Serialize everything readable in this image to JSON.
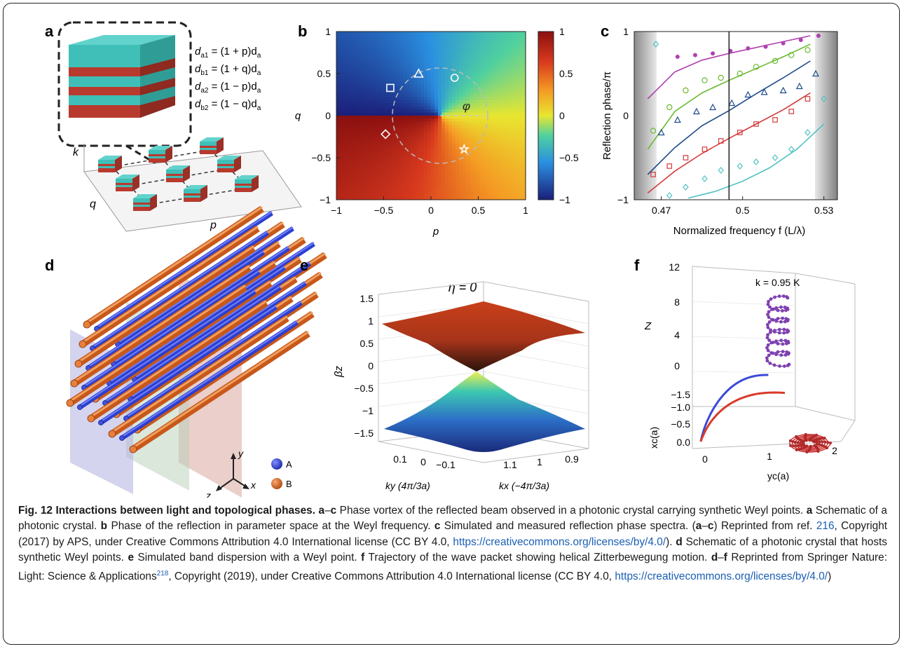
{
  "panel_labels": [
    "a",
    "b",
    "c",
    "d",
    "e",
    "f"
  ],
  "panel_a": {
    "equations": [
      [
        "d",
        "a1",
        " = (1 + p)d",
        "a"
      ],
      [
        "d",
        "b1",
        " = (1 + q)d",
        "a"
      ],
      [
        "d",
        "a2",
        " = (1 − p)d",
        "a"
      ],
      [
        "d",
        "b2",
        " = (1 − q)d",
        "a"
      ]
    ],
    "axis_k": "k",
    "axis_q": "q",
    "axis_p": "p",
    "colors": {
      "teal": "#3fbfb8",
      "red": "#b83a2e"
    }
  },
  "chart_data": [
    {
      "panel": "b",
      "type": "heatmap",
      "xlabel": "p",
      "ylabel": "q",
      "xlim": [
        -1,
        1
      ],
      "ylim": [
        -1,
        1
      ],
      "xticks": [
        "−1",
        "−0.5",
        "0",
        "0.5",
        "1"
      ],
      "yticks": [
        "1",
        "0.5",
        "0",
        "−0.5",
        "−1"
      ],
      "colorbar_ticks": [
        "1",
        "0.5",
        "0",
        "−0.5",
        "−1"
      ],
      "colorbar_range": [
        -1,
        1
      ],
      "annotation": "φ",
      "markers": [
        {
          "shape": "triangle",
          "p": -0.13,
          "q": 0.5
        },
        {
          "shape": "circle",
          "p": 0.25,
          "q": 0.45
        },
        {
          "shape": "square",
          "p": -0.43,
          "q": 0.33
        },
        {
          "shape": "diamond",
          "p": -0.48,
          "q": -0.22
        },
        {
          "shape": "star",
          "p": 0.35,
          "q": -0.4
        }
      ]
    },
    {
      "panel": "c",
      "type": "line",
      "xlabel": "Normalized frequency f (L/λ)",
      "ylabel": "Reflection phase/π",
      "xlim": [
        0.46,
        0.535
      ],
      "ylim": [
        -1,
        1
      ],
      "xticks": [
        "0.47",
        "0.5",
        "0.53"
      ],
      "yticks": [
        "1",
        "0",
        "−1"
      ],
      "vertical_line_x": 0.495,
      "series": [
        {
          "marker": "star",
          "color": "#b040b0",
          "x": [
            0.476,
            0.4825,
            0.489,
            0.4955,
            0.502,
            0.5085,
            0.515,
            0.5215,
            0.528
          ],
          "y": [
            0.7,
            0.72,
            0.74,
            0.77,
            0.8,
            0.82,
            0.86,
            0.9,
            0.95
          ],
          "curve_x": [
            0.465,
            0.475,
            0.485,
            0.495,
            0.505,
            0.515,
            0.525
          ],
          "curve_y": [
            0.2,
            0.52,
            0.66,
            0.74,
            0.81,
            0.88,
            0.95
          ]
        },
        {
          "marker": "circle",
          "color": "#6aba32",
          "x": [
            0.467,
            0.473,
            0.479,
            0.486,
            0.492,
            0.499,
            0.505,
            0.512,
            0.518,
            0.524
          ],
          "y": [
            -0.18,
            0.1,
            0.3,
            0.42,
            0.45,
            0.5,
            0.58,
            0.65,
            0.72,
            0.78
          ],
          "curve_x": [
            0.465,
            0.475,
            0.485,
            0.495,
            0.505,
            0.515,
            0.525
          ],
          "curve_y": [
            -0.4,
            0.05,
            0.27,
            0.42,
            0.56,
            0.7,
            0.85
          ]
        },
        {
          "marker": "triangle",
          "color": "#1d4a8a",
          "x": [
            0.47,
            0.476,
            0.483,
            0.489,
            0.496,
            0.502,
            0.508,
            0.515,
            0.521,
            0.527
          ],
          "y": [
            -0.2,
            -0.05,
            0.05,
            0.1,
            0.15,
            0.25,
            0.28,
            0.3,
            0.35,
            0.5
          ],
          "curve_x": [
            0.465,
            0.475,
            0.485,
            0.495,
            0.505,
            0.515,
            0.525
          ],
          "curve_y": [
            -0.7,
            -0.38,
            -0.12,
            0.06,
            0.26,
            0.45,
            0.65
          ]
        },
        {
          "marker": "square",
          "color": "#d43a3a",
          "x": [
            0.467,
            0.473,
            0.479,
            0.486,
            0.492,
            0.499,
            0.505,
            0.512,
            0.518,
            0.524
          ],
          "y": [
            -0.7,
            -0.6,
            -0.5,
            -0.4,
            -0.3,
            -0.2,
            -0.1,
            -0.05,
            0.05,
            0.2
          ],
          "curve_x": [
            0.465,
            0.475,
            0.485,
            0.495,
            0.505,
            0.515,
            0.525
          ],
          "curve_y": [
            -0.92,
            -0.66,
            -0.45,
            -0.27,
            -0.1,
            0.07,
            0.27
          ]
        },
        {
          "marker": "diamond",
          "color": "#4fc2c2",
          "x": [
            0.468,
            0.473,
            0.479,
            0.486,
            0.492,
            0.499,
            0.505,
            0.512,
            0.518,
            0.524,
            0.53
          ],
          "y": [
            0.85,
            -0.95,
            -0.85,
            -0.75,
            -0.65,
            -0.6,
            -0.55,
            -0.5,
            -0.4,
            -0.2,
            0.2
          ],
          "curve_x": [
            0.48,
            0.49,
            0.5,
            0.51,
            0.52,
            0.53
          ],
          "curve_y": [
            -0.98,
            -0.9,
            -0.78,
            -0.62,
            -0.4,
            -0.1
          ]
        }
      ]
    },
    {
      "panel": "e",
      "type": "area",
      "title": "η = 0",
      "zlabel": "βz",
      "zticks": [
        "1.5",
        "1",
        "0.5",
        "0",
        "−0.5",
        "−1",
        "−1.5"
      ],
      "ky_label": "ky (4π/3a)",
      "ky_ticks": [
        "0.1",
        "0",
        "−0.1"
      ],
      "kx_label": "kx (−4π/3a)",
      "kx_ticks": [
        "1.1",
        "1",
        "0.9"
      ]
    },
    {
      "panel": "f",
      "type": "line",
      "annotation": "k = 0.95 K",
      "z_label": "Z",
      "z_ticks": [
        "12",
        "8",
        "4",
        "0"
      ],
      "xc_label": "xc(a)",
      "xc_ticks": [
        "−1.5",
        "−1.0",
        "−0.5",
        "0.0"
      ],
      "yc_label": "yc(a)",
      "yc_ticks": [
        "0",
        "1",
        "2"
      ]
    }
  ],
  "panel_d": {
    "legend": [
      {
        "label": "A",
        "color": "#2c3fd0"
      },
      {
        "label": "B",
        "color": "#d4621c"
      }
    ],
    "axes": [
      "y",
      "x",
      "z"
    ]
  },
  "caption": {
    "title": "Fig. 12 Interactions between light and topological phases.",
    "t1": "a",
    "t2": "–",
    "t3": "c",
    "t4": " Phase vortex of the reflected beam observed in a photonic crystal carrying synthetic Weyl points. ",
    "t5": "a",
    "t6": " Schematic of a photonic crystal. ",
    "t7": "b",
    "t8": " Phase of the reflection in parameter space at the Weyl frequency. ",
    "t9": "c",
    "t10": " Simulated and measured reflection phase spectra. (",
    "t11": "a",
    "t12": "–",
    "t13": "c",
    "t14": ") Reprinted from ref. ",
    "ref1": "216",
    "t15": ", Copyright (2017) by APS, under Creative Commons Attribution 4.0 International license (CC BY 4.0, ",
    "link1": "https://creativecommons.org/licenses/by/4.0/",
    "t16": "). ",
    "t17": "d",
    "t18": " Schematic of a photonic crystal that hosts synthetic Weyl points. ",
    "t19": "e",
    "t20": " Simulated band dispersion with a Weyl point. ",
    "t21": "f",
    "t22": " Trajectory of the wave packet showing helical Zitterbewegung motion. ",
    "t23": "d",
    "t24": "–",
    "t25": "f",
    "t26": " Reprinted from Springer Nature: Light: Science & Applications",
    "ref2": "218",
    "t27": ", Copyright (2019), under Creative Commons Attribution 4.0 International license (CC BY 4.0, ",
    "link2": "https://creativecommons.org/licenses/by/4.0/",
    "t28": ")"
  }
}
